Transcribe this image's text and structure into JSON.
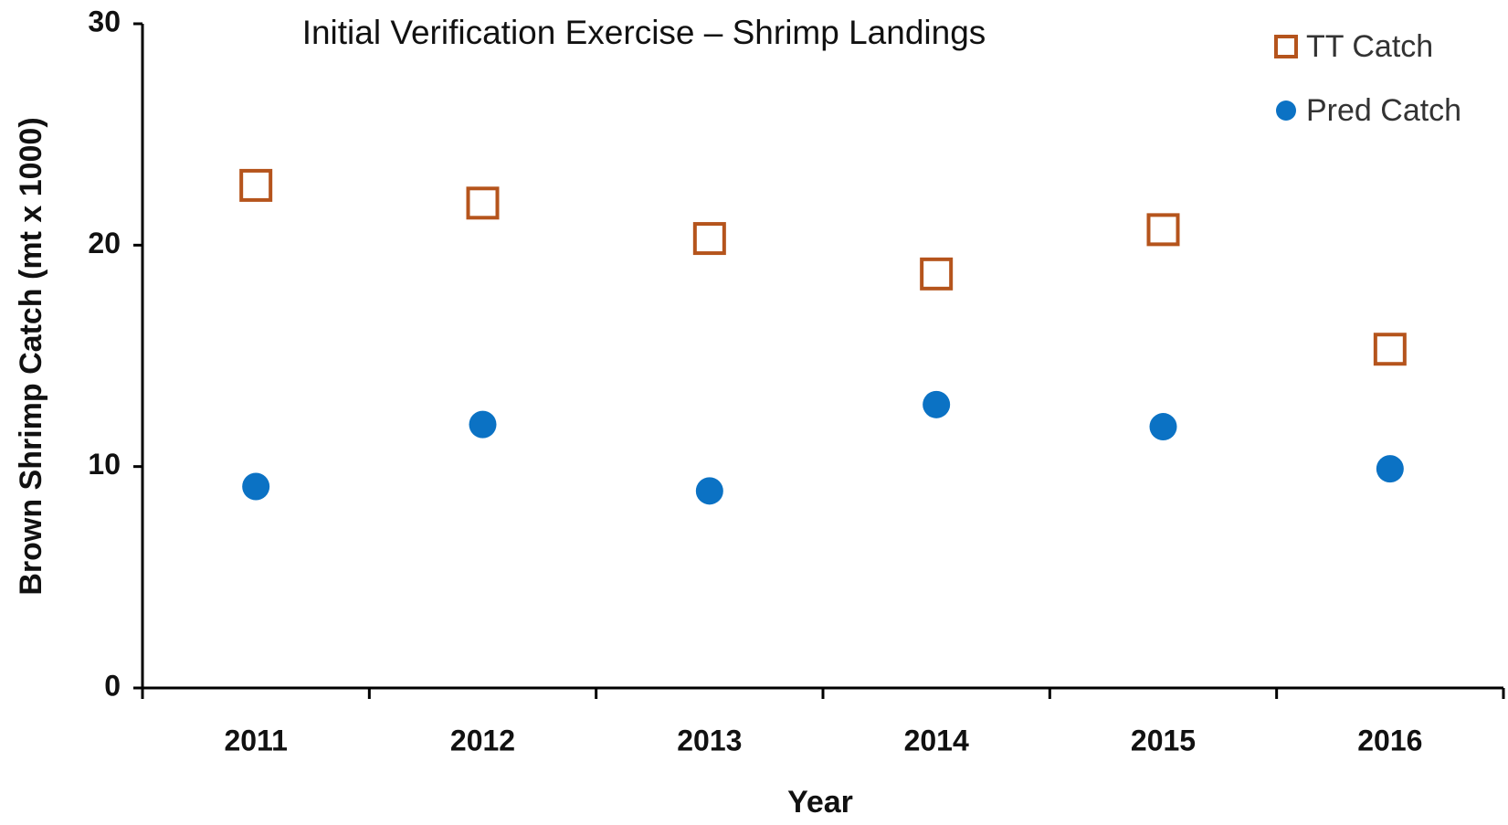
{
  "chart_data": {
    "type": "scatter",
    "title": "Initial Verification Exercise – Shrimp Landings",
    "x_label": "Year",
    "y_label": "Brown Shrimp Catch (mt x 1000)",
    "categories": [
      "2011",
      "2012",
      "2013",
      "2014",
      "2015",
      "2016"
    ],
    "series": [
      {
        "name": "TT Catch",
        "color": "#b5541c",
        "marker": "square",
        "values": [
          22.7,
          21.9,
          20.3,
          18.7,
          20.7,
          15.3
        ]
      },
      {
        "name": "Pred Catch",
        "color": "#0b72c4",
        "marker": "circle",
        "values": [
          9.1,
          11.9,
          8.9,
          12.8,
          11.8,
          9.9
        ]
      }
    ],
    "ylim": [
      0,
      30
    ],
    "yticks": [
      0,
      10,
      20,
      30
    ],
    "grid": false,
    "legend": "top-right"
  }
}
